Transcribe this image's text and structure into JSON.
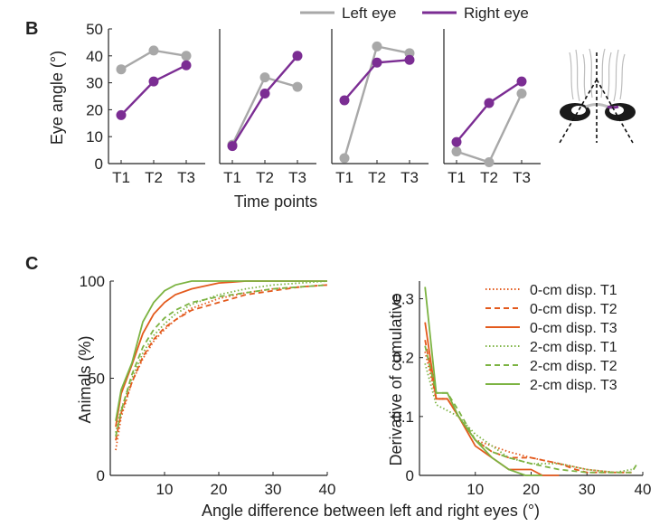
{
  "panel_b": {
    "letter": "B",
    "legend": [
      {
        "label": "Left eye",
        "color": "#a8a8a8"
      },
      {
        "label": "Right eye",
        "color": "#7b2d93"
      }
    ],
    "ylabel": "Eye angle (°)",
    "xlabel": "Time points"
  },
  "panel_c": {
    "letter": "C",
    "xlabel": "Angle difference between left and right eyes (°)",
    "left_ylabel": "Animals (%)",
    "right_ylabel": "Derivative of cumulative"
  },
  "chart_data": [
    {
      "type": "line",
      "panel": "B-1",
      "categories": [
        "T1",
        "T2",
        "T3"
      ],
      "ylim": [
        0,
        50
      ],
      "yticks": [
        0,
        10,
        20,
        30,
        40,
        50
      ],
      "series": [
        {
          "name": "Left eye",
          "color": "#a8a8a8",
          "values": [
            35,
            42,
            40
          ]
        },
        {
          "name": "Right eye",
          "color": "#7b2d93",
          "values": [
            18,
            30.5,
            36.5
          ]
        }
      ]
    },
    {
      "type": "line",
      "panel": "B-2",
      "categories": [
        "T1",
        "T2",
        "T3"
      ],
      "ylim": [
        0,
        50
      ],
      "series": [
        {
          "name": "Left eye",
          "color": "#a8a8a8",
          "values": [
            7,
            32,
            28.5
          ]
        },
        {
          "name": "Right eye",
          "color": "#7b2d93",
          "values": [
            6.5,
            26,
            40
          ]
        }
      ]
    },
    {
      "type": "line",
      "panel": "B-3",
      "categories": [
        "T1",
        "T2",
        "T3"
      ],
      "ylim": [
        0,
        50
      ],
      "series": [
        {
          "name": "Left eye",
          "color": "#a8a8a8",
          "values": [
            2,
            43.5,
            41
          ]
        },
        {
          "name": "Right eye",
          "color": "#7b2d93",
          "values": [
            23.5,
            37.5,
            38.5
          ]
        }
      ]
    },
    {
      "type": "line",
      "panel": "B-4",
      "categories": [
        "T1",
        "T2",
        "T3"
      ],
      "ylim": [
        0,
        50
      ],
      "series": [
        {
          "name": "Left eye",
          "color": "#a8a8a8",
          "values": [
            4.5,
            0.5,
            26
          ]
        },
        {
          "name": "Right eye",
          "color": "#7b2d93",
          "values": [
            8,
            22.5,
            30.5
          ]
        }
      ]
    },
    {
      "type": "line",
      "panel": "C-left",
      "ylabel": "Animals (%)",
      "xlim": [
        0,
        40
      ],
      "ylim": [
        0,
        100
      ],
      "xticks": [
        10,
        20,
        30,
        40
      ],
      "yticks": [
        0,
        50,
        100
      ],
      "series": [
        {
          "name": "0-cm disp. T1",
          "color": "#e35a1d",
          "dash": "dot",
          "x": [
            1,
            2,
            4,
            6,
            8,
            10,
            12,
            15,
            20,
            25,
            30,
            35,
            40
          ],
          "y": [
            13,
            30,
            48,
            60,
            69,
            75,
            80,
            86,
            91,
            94,
            96,
            97,
            98
          ]
        },
        {
          "name": "0-cm disp. T2",
          "color": "#e35a1d",
          "dash": "dash",
          "x": [
            1,
            2,
            4,
            6,
            8,
            10,
            12,
            15,
            20,
            25,
            30,
            35,
            40
          ],
          "y": [
            18,
            32,
            48,
            61,
            70,
            76,
            80,
            85,
            89,
            93,
            95,
            97,
            98
          ]
        },
        {
          "name": "0-cm disp. T3",
          "color": "#e35a1d",
          "dash": "solid",
          "x": [
            1,
            2,
            4,
            6,
            8,
            10,
            12,
            15,
            20,
            25,
            30,
            35,
            40
          ],
          "y": [
            25,
            42,
            57,
            73,
            83,
            89,
            93,
            96,
            99,
            100,
            100,
            100,
            100
          ]
        },
        {
          "name": "2-cm disp. T1",
          "color": "#7cb342",
          "dash": "dot",
          "x": [
            1,
            2,
            4,
            6,
            8,
            10,
            12,
            15,
            20,
            25,
            30,
            35,
            40
          ],
          "y": [
            22,
            34,
            50,
            63,
            72,
            78,
            83,
            88,
            93,
            96,
            98,
            99,
            100
          ]
        },
        {
          "name": "2-cm disp. T2",
          "color": "#7cb342",
          "dash": "dash",
          "x": [
            1,
            2,
            4,
            6,
            8,
            10,
            12,
            15,
            20,
            25,
            30,
            35,
            40
          ],
          "y": [
            20,
            33,
            52,
            66,
            75,
            81,
            85,
            89,
            92,
            94,
            96,
            97,
            98
          ]
        },
        {
          "name": "2-cm disp. T3",
          "color": "#7cb342",
          "dash": "solid",
          "x": [
            1,
            2,
            4,
            6,
            8,
            10,
            12,
            15,
            20,
            25,
            30,
            35,
            40
          ],
          "y": [
            28,
            44,
            58,
            79,
            89,
            95,
            98,
            100,
            100,
            100,
            100,
            100,
            100
          ]
        }
      ]
    },
    {
      "type": "line",
      "panel": "C-right",
      "ylabel": "Derivative of cumulative",
      "xlim": [
        0,
        40
      ],
      "ylim": [
        0,
        0.33
      ],
      "xticks": [
        10,
        20,
        30,
        40
      ],
      "yticks": [
        0,
        0.1,
        0.2,
        0.3
      ],
      "series": [
        {
          "name": "0-cm disp. T1",
          "color": "#e35a1d",
          "dash": "dot",
          "x": [
            1,
            3,
            5,
            7,
            10,
            13,
            16,
            20,
            25,
            30,
            35,
            38
          ],
          "y": [
            0.21,
            0.13,
            0.13,
            0.1,
            0.06,
            0.05,
            0.04,
            0.03,
            0.02,
            0.01,
            0.005,
            0.005
          ]
        },
        {
          "name": "0-cm disp. T2",
          "color": "#e35a1d",
          "dash": "dash",
          "x": [
            1,
            3,
            5,
            7,
            10,
            13,
            16,
            20,
            25,
            28,
            30,
            35,
            38
          ],
          "y": [
            0.23,
            0.13,
            0.13,
            0.1,
            0.06,
            0.04,
            0.03,
            0.03,
            0.02,
            0.01,
            0.005,
            0.005,
            0.005
          ]
        },
        {
          "name": "0-cm disp. T3",
          "color": "#e35a1d",
          "dash": "solid",
          "x": [
            1,
            3,
            5,
            7,
            10,
            13,
            16,
            20,
            22,
            25
          ],
          "y": [
            0.26,
            0.13,
            0.13,
            0.1,
            0.05,
            0.03,
            0.01,
            0.01,
            0.0,
            0.0
          ]
        },
        {
          "name": "2-cm disp. T1",
          "color": "#7cb342",
          "dash": "dot",
          "x": [
            1,
            3,
            5,
            7,
            10,
            13,
            16,
            20,
            25,
            30,
            35,
            38
          ],
          "y": [
            0.19,
            0.12,
            0.11,
            0.1,
            0.07,
            0.05,
            0.03,
            0.02,
            0.02,
            0.01,
            0.005,
            0.01
          ]
        },
        {
          "name": "2-cm disp. T2",
          "color": "#7cb342",
          "dash": "dash",
          "x": [
            1,
            3,
            5,
            7,
            10,
            13,
            16,
            20,
            25,
            30,
            35,
            38,
            39
          ],
          "y": [
            0.22,
            0.14,
            0.14,
            0.11,
            0.06,
            0.04,
            0.03,
            0.02,
            0.01,
            0.005,
            0.005,
            0.005,
            0.02
          ]
        },
        {
          "name": "2-cm disp. T3",
          "color": "#7cb342",
          "dash": "solid",
          "x": [
            1,
            3,
            5,
            7,
            10,
            13,
            16,
            19,
            22
          ],
          "y": [
            0.32,
            0.14,
            0.14,
            0.1,
            0.06,
            0.03,
            0.01,
            0.0,
            0.0
          ]
        }
      ]
    }
  ]
}
